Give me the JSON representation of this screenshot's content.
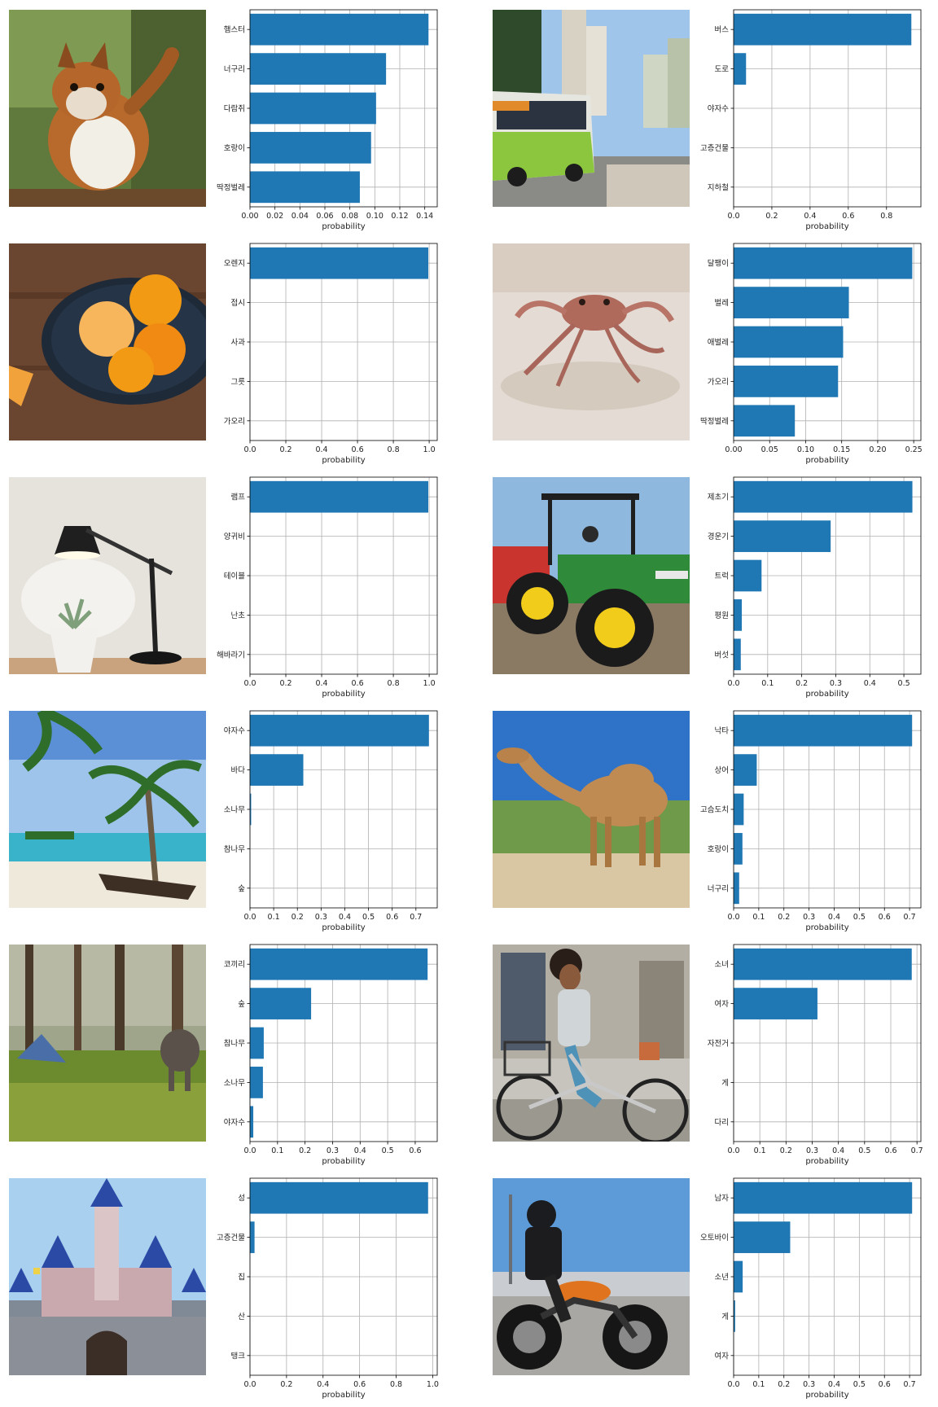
{
  "colors": {
    "bar": "#1f77b4",
    "grid": "#b0b0b0",
    "axis": "#000000"
  },
  "chart_data": [
    {
      "type": "bar",
      "orientation": "horizontal",
      "photo": "squirrel-photo",
      "categories": [
        "햄스터",
        "너구리",
        "다람쥐",
        "호랑이",
        "딱정벌레"
      ],
      "values": [
        0.143,
        0.109,
        0.101,
        0.097,
        0.088
      ],
      "xlim": [
        0,
        0.15
      ],
      "xticks": [
        0,
        0.02,
        0.04,
        0.06,
        0.08,
        0.1,
        0.12,
        0.14
      ],
      "xticklabels": [
        "0.00",
        "0.02",
        "0.04",
        "0.06",
        "0.08",
        "0.10",
        "0.12",
        "0.14"
      ],
      "xlabel": "probability",
      "grid": true
    },
    {
      "type": "bar",
      "orientation": "horizontal",
      "photo": "bus-photo",
      "categories": [
        "버스",
        "도로",
        "야자수",
        "고층건물",
        "지하철"
      ],
      "values": [
        0.93,
        0.065,
        0.0,
        0.0,
        0.0
      ],
      "xlim": [
        0,
        0.98
      ],
      "xticks": [
        0,
        0.2,
        0.4,
        0.6,
        0.8
      ],
      "xticklabels": [
        "0.0",
        "0.2",
        "0.4",
        "0.6",
        "0.8"
      ],
      "xlabel": "probability",
      "grid": true
    },
    {
      "type": "bar",
      "orientation": "horizontal",
      "photo": "oranges-photo",
      "categories": [
        "오렌지",
        "접시",
        "사과",
        "그릇",
        "가오리"
      ],
      "values": [
        0.995,
        0.0,
        0.0,
        0.0,
        0.0
      ],
      "xlim": [
        0,
        1.045
      ],
      "xticks": [
        0,
        0.2,
        0.4,
        0.6,
        0.8,
        1.0
      ],
      "xticklabels": [
        "0.0",
        "0.2",
        "0.4",
        "0.6",
        "0.8",
        "1.0"
      ],
      "xlabel": "probability",
      "grid": true
    },
    {
      "type": "bar",
      "orientation": "horizontal",
      "photo": "crab-photo",
      "categories": [
        "달팽이",
        "벌레",
        "애벌레",
        "가오리",
        "딱정벌레"
      ],
      "values": [
        0.248,
        0.16,
        0.152,
        0.145,
        0.085
      ],
      "xlim": [
        0,
        0.26
      ],
      "xticks": [
        0,
        0.05,
        0.1,
        0.15,
        0.2,
        0.25
      ],
      "xticklabels": [
        "0.00",
        "0.05",
        "0.10",
        "0.15",
        "0.20",
        "0.25"
      ],
      "xlabel": "probability",
      "grid": true
    },
    {
      "type": "bar",
      "orientation": "horizontal",
      "photo": "lamp-photo",
      "categories": [
        "램프",
        "양귀비",
        "테이블",
        "난초",
        "해바라기"
      ],
      "values": [
        0.995,
        0.0,
        0.0,
        0.0,
        0.0
      ],
      "xlim": [
        0,
        1.045
      ],
      "xticks": [
        0,
        0.2,
        0.4,
        0.6,
        0.8,
        1.0
      ],
      "xticklabels": [
        "0.0",
        "0.2",
        "0.4",
        "0.6",
        "0.8",
        "1.0"
      ],
      "xlabel": "probability",
      "grid": true
    },
    {
      "type": "bar",
      "orientation": "horizontal",
      "photo": "tractor-photo",
      "categories": [
        "제초기",
        "경운기",
        "트럭",
        "평원",
        "버섯"
      ],
      "values": [
        0.525,
        0.285,
        0.082,
        0.024,
        0.021
      ],
      "xlim": [
        0,
        0.55
      ],
      "xticks": [
        0,
        0.1,
        0.2,
        0.3,
        0.4,
        0.5
      ],
      "xticklabels": [
        "0.0",
        "0.1",
        "0.2",
        "0.3",
        "0.4",
        "0.5"
      ],
      "xlabel": "probability",
      "grid": true
    },
    {
      "type": "bar",
      "orientation": "horizontal",
      "photo": "palm-beach-photo",
      "categories": [
        "야자수",
        "바다",
        "소나무",
        "참나무",
        "숲"
      ],
      "values": [
        0.755,
        0.225,
        0.005,
        0.0,
        0.0
      ],
      "xlim": [
        0,
        0.79
      ],
      "xticks": [
        0,
        0.1,
        0.2,
        0.3,
        0.4,
        0.5,
        0.6,
        0.7
      ],
      "xticklabels": [
        "0.0",
        "0.1",
        "0.2",
        "0.3",
        "0.4",
        "0.5",
        "0.6",
        "0.7"
      ],
      "xlabel": "probability",
      "grid": true
    },
    {
      "type": "bar",
      "orientation": "horizontal",
      "photo": "camel-photo",
      "categories": [
        "낙타",
        "상어",
        "고슴도치",
        "호랑이",
        "너구리"
      ],
      "values": [
        0.71,
        0.092,
        0.04,
        0.035,
        0.022
      ],
      "xlim": [
        0,
        0.745
      ],
      "xticks": [
        0,
        0.1,
        0.2,
        0.3,
        0.4,
        0.5,
        0.6,
        0.7
      ],
      "xticklabels": [
        "0.0",
        "0.1",
        "0.2",
        "0.3",
        "0.4",
        "0.5",
        "0.6",
        "0.7"
      ],
      "xlabel": "probability",
      "grid": true
    },
    {
      "type": "bar",
      "orientation": "horizontal",
      "photo": "elephant-forest-photo",
      "categories": [
        "코끼리",
        "숲",
        "참나무",
        "소나무",
        "야자수"
      ],
      "values": [
        0.645,
        0.222,
        0.05,
        0.047,
        0.012
      ],
      "xlim": [
        0,
        0.68
      ],
      "xticks": [
        0,
        0.1,
        0.2,
        0.3,
        0.4,
        0.5,
        0.6
      ],
      "xticklabels": [
        "0.0",
        "0.1",
        "0.2",
        "0.3",
        "0.4",
        "0.5",
        "0.6"
      ],
      "xlabel": "probability",
      "grid": true
    },
    {
      "type": "bar",
      "orientation": "horizontal",
      "photo": "girl-bicycle-photo",
      "categories": [
        "소녀",
        "여자",
        "자전거",
        "게",
        "다리"
      ],
      "values": [
        0.68,
        0.32,
        0.0,
        0.0,
        0.0
      ],
      "xlim": [
        0,
        0.715
      ],
      "xticks": [
        0,
        0.1,
        0.2,
        0.3,
        0.4,
        0.5,
        0.6,
        0.7
      ],
      "xticklabels": [
        "0.0",
        "0.1",
        "0.2",
        "0.3",
        "0.4",
        "0.5",
        "0.6",
        "0.7"
      ],
      "xlabel": "probability",
      "grid": true
    },
    {
      "type": "bar",
      "orientation": "horizontal",
      "photo": "castle-photo",
      "categories": [
        "성",
        "고층건물",
        "집",
        "산",
        "탱크"
      ],
      "values": [
        0.975,
        0.025,
        0.0,
        0.0,
        0.0
      ],
      "xlim": [
        0,
        1.025
      ],
      "xticks": [
        0,
        0.2,
        0.4,
        0.6,
        0.8,
        1.0
      ],
      "xticklabels": [
        "0.0",
        "0.2",
        "0.4",
        "0.6",
        "0.8",
        "1.0"
      ],
      "xlabel": "probability",
      "grid": true
    },
    {
      "type": "bar",
      "orientation": "horizontal",
      "photo": "motorcycle-photo",
      "categories": [
        "남자",
        "오토바이",
        "소년",
        "게",
        "여자"
      ],
      "values": [
        0.71,
        0.225,
        0.036,
        0.006,
        0.0
      ],
      "xlim": [
        0,
        0.745
      ],
      "xticks": [
        0,
        0.1,
        0.2,
        0.3,
        0.4,
        0.5,
        0.6,
        0.7
      ],
      "xticklabels": [
        "0.0",
        "0.1",
        "0.2",
        "0.3",
        "0.4",
        "0.5",
        "0.6",
        "0.7"
      ],
      "xlabel": "probability",
      "grid": true
    }
  ]
}
